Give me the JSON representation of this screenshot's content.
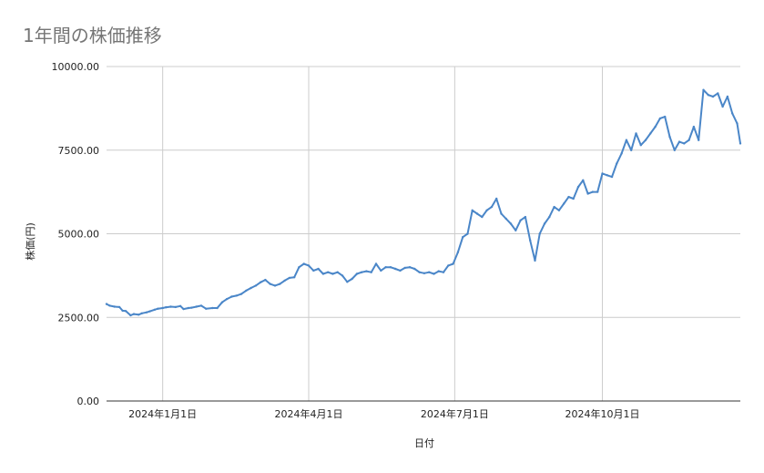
{
  "chart_data": {
    "type": "line",
    "title": "1年間の株価推移",
    "xlabel": "日付",
    "ylabel": "株価(円)",
    "ylim": [
      0,
      10000
    ],
    "yticks": [
      "0.00",
      "2500.00",
      "5000.00",
      "7500.00",
      "10000.00"
    ],
    "ytick_values": [
      0,
      2500,
      5000,
      7500,
      10000
    ],
    "xticks": [
      {
        "label": "2024年1月1日",
        "date": "2024-01-01"
      },
      {
        "label": "2024年4月1日",
        "date": "2024-04-01"
      },
      {
        "label": "2024年7月1日",
        "date": "2024-07-01"
      },
      {
        "label": "2024年10月1日",
        "date": "2024-10-01"
      }
    ],
    "xlim": [
      "2023-11-27",
      "2024-12-26"
    ],
    "grid": true,
    "legend": "none",
    "color": "#4a86c8",
    "series": [
      {
        "x": [
          "2023-11-27",
          "2023-11-29",
          "2023-12-02",
          "2023-12-05",
          "2023-12-07",
          "2023-12-09",
          "2023-12-12",
          "2023-12-14",
          "2023-12-17",
          "2023-12-19",
          "2023-12-22",
          "2023-12-24",
          "2023-12-27",
          "2023-12-29",
          "2024-01-01",
          "2024-01-03",
          "2024-01-06",
          "2024-01-09",
          "2024-01-12",
          "2024-01-14",
          "2024-01-17",
          "2024-01-19",
          "2024-01-22",
          "2024-01-25",
          "2024-01-28",
          "2024-02-01",
          "2024-02-04",
          "2024-02-07",
          "2024-02-10",
          "2024-02-13",
          "2024-02-16",
          "2024-02-19",
          "2024-02-22",
          "2024-02-25",
          "2024-02-28",
          "2024-03-02",
          "2024-03-05",
          "2024-03-08",
          "2024-03-11",
          "2024-03-14",
          "2024-03-17",
          "2024-03-20",
          "2024-03-23",
          "2024-03-26",
          "2024-03-29",
          "2024-04-01",
          "2024-04-04",
          "2024-04-07",
          "2024-04-10",
          "2024-04-13",
          "2024-04-16",
          "2024-04-19",
          "2024-04-22",
          "2024-04-25",
          "2024-04-28",
          "2024-05-01",
          "2024-05-04",
          "2024-05-07",
          "2024-05-10",
          "2024-05-13",
          "2024-05-16",
          "2024-05-19",
          "2024-05-22",
          "2024-05-25",
          "2024-05-28",
          "2024-05-31",
          "2024-06-03",
          "2024-06-06",
          "2024-06-09",
          "2024-06-12",
          "2024-06-15",
          "2024-06-18",
          "2024-06-21",
          "2024-06-24",
          "2024-06-27",
          "2024-06-30",
          "2024-07-03",
          "2024-07-06",
          "2024-07-09",
          "2024-07-12",
          "2024-07-15",
          "2024-07-18",
          "2024-07-21",
          "2024-07-24",
          "2024-07-27",
          "2024-07-30",
          "2024-08-02",
          "2024-08-05",
          "2024-08-08",
          "2024-08-11",
          "2024-08-14",
          "2024-08-17",
          "2024-08-20",
          "2024-08-23",
          "2024-08-26",
          "2024-08-29",
          "2024-09-01",
          "2024-09-04",
          "2024-09-07",
          "2024-09-10",
          "2024-09-13",
          "2024-09-16",
          "2024-09-19",
          "2024-09-22",
          "2024-09-25",
          "2024-09-28",
          "2024-10-01",
          "2024-10-04",
          "2024-10-07",
          "2024-10-10",
          "2024-10-13",
          "2024-10-16",
          "2024-10-19",
          "2024-10-22",
          "2024-10-25",
          "2024-10-28",
          "2024-10-31",
          "2024-11-03",
          "2024-11-06",
          "2024-11-09",
          "2024-11-12",
          "2024-11-15",
          "2024-11-18",
          "2024-11-21",
          "2024-11-24",
          "2024-11-27",
          "2024-11-30",
          "2024-12-03",
          "2024-12-06",
          "2024-12-09",
          "2024-12-12",
          "2024-12-15",
          "2024-12-18",
          "2024-12-21",
          "2024-12-24",
          "2024-12-26"
        ],
        "y": [
          2900,
          2850,
          2820,
          2810,
          2700,
          2690,
          2560,
          2600,
          2580,
          2620,
          2650,
          2680,
          2730,
          2760,
          2780,
          2800,
          2820,
          2810,
          2840,
          2750,
          2780,
          2790,
          2820,
          2850,
          2760,
          2780,
          2780,
          2950,
          3050,
          3120,
          3150,
          3200,
          3300,
          3380,
          3450,
          3550,
          3620,
          3500,
          3450,
          3500,
          3600,
          3680,
          3700,
          4000,
          4100,
          4050,
          3900,
          3950,
          3800,
          3850,
          3800,
          3850,
          3750,
          3560,
          3650,
          3800,
          3850,
          3880,
          3850,
          4100,
          3900,
          4000,
          4000,
          3950,
          3900,
          3980,
          4000,
          3950,
          3850,
          3820,
          3850,
          3800,
          3880,
          3850,
          4050,
          4100,
          4450,
          4900,
          5000,
          5700,
          5600,
          5500,
          5700,
          5800,
          6050,
          5600,
          5450,
          5300,
          5100,
          5400,
          5500,
          4800,
          4200,
          5000,
          5300,
          5500,
          5800,
          5700,
          5900,
          6100,
          6050,
          6400,
          6600,
          6200,
          6250,
          6250,
          6800,
          6750,
          6700,
          7100,
          7400,
          7800,
          7500,
          8000,
          7650,
          7800,
          8000,
          8200,
          8450,
          8500,
          7900,
          7500,
          7750,
          7700,
          7800,
          8200,
          7800,
          9300,
          9150,
          9100,
          9200,
          8800,
          9100,
          8600,
          8300,
          7700
        ]
      }
    ]
  }
}
